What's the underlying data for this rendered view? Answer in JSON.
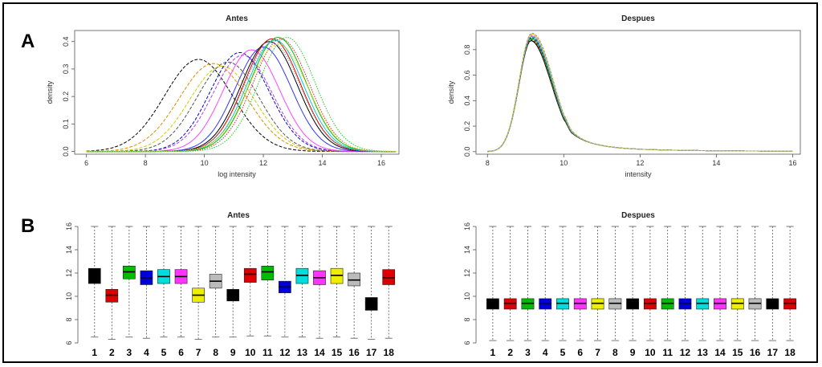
{
  "panels": {
    "a_label": "A",
    "b_label": "B"
  },
  "chart_data": [
    {
      "type": "line",
      "title": "Antes",
      "xlabel": "log intensity",
      "ylabel": "density",
      "xlim": [
        5.6,
        16.6
      ],
      "ylim": [
        -0.01,
        0.44
      ],
      "xticks": [
        "6",
        "8",
        "10",
        "12",
        "14",
        "16"
      ],
      "yticks": [
        "0.0",
        "0.1",
        "0.2",
        "0.3",
        "0.4"
      ],
      "series": [
        {
          "color": "#000000",
          "mean": 9.8,
          "sd": 1.15,
          "peak": 0.335,
          "style": "dashed"
        },
        {
          "color": "#e08a00",
          "mean": 10.3,
          "sd": 1.15,
          "peak": 0.32,
          "style": "dashed"
        },
        {
          "color": "#cccc00",
          "mean": 10.6,
          "sd": 1.1,
          "peak": 0.31,
          "style": "dashed"
        },
        {
          "color": "#555555",
          "mean": 10.8,
          "sd": 1.05,
          "peak": 0.325,
          "style": "dashed"
        },
        {
          "color": "#0000dd",
          "mean": 11.2,
          "sd": 1.0,
          "peak": 0.36,
          "style": "dashed"
        },
        {
          "color": "#aa44dd",
          "mean": 11.3,
          "sd": 1.0,
          "peak": 0.35,
          "style": "dashed"
        },
        {
          "color": "#ff44ff",
          "mean": 11.6,
          "sd": 0.95,
          "peak": 0.37,
          "style": "solid"
        },
        {
          "color": "#3333ff",
          "mean": 12.0,
          "sd": 0.95,
          "peak": 0.38,
          "style": "solid"
        },
        {
          "color": "#000000",
          "mean": 12.2,
          "sd": 0.95,
          "peak": 0.4,
          "style": "solid"
        },
        {
          "color": "#dd0000",
          "mean": 12.3,
          "sd": 0.95,
          "peak": 0.41,
          "style": "solid"
        },
        {
          "color": "#00bb00",
          "mean": 12.5,
          "sd": 0.95,
          "peak": 0.415,
          "style": "solid"
        },
        {
          "color": "#00cccc",
          "mean": 12.4,
          "sd": 0.95,
          "peak": 0.405,
          "style": "solid"
        },
        {
          "color": "#dd2222",
          "mean": 12.6,
          "sd": 0.95,
          "peak": 0.41,
          "style": "dotted"
        },
        {
          "color": "#22cc22",
          "mean": 12.8,
          "sd": 0.95,
          "peak": 0.415,
          "style": "dotted"
        },
        {
          "color": "#999999",
          "mean": 12.3,
          "sd": 0.95,
          "peak": 0.395,
          "style": "dotted"
        },
        {
          "color": "#ffcc00",
          "mean": 12.5,
          "sd": 1.0,
          "peak": 0.39,
          "style": "dotted"
        }
      ]
    },
    {
      "type": "line",
      "title": "Despues",
      "xlabel": "intensity",
      "ylabel": "density",
      "xlim": [
        7.7,
        16.2
      ],
      "ylim": [
        -0.02,
        0.95
      ],
      "xticks": [
        "8",
        "10",
        "12",
        "14",
        "16"
      ],
      "yticks": [
        "0.0",
        "0.2",
        "0.4",
        "0.6",
        "0.8"
      ],
      "peak_x": 9.15,
      "peak_y": 0.9,
      "series_colors": [
        "#000000",
        "#dd0000",
        "#00bb00",
        "#0000dd",
        "#00cccc",
        "#ff44ff",
        "#dddd00",
        "#999999"
      ]
    },
    {
      "type": "box",
      "title": "Antes",
      "ylim": [
        6,
        16
      ],
      "yticks": [
        "6",
        "8",
        "10",
        "12",
        "14",
        "16"
      ],
      "categories": [
        "1",
        "2",
        "3",
        "4",
        "5",
        "6",
        "7",
        "8",
        "9",
        "10",
        "11",
        "12",
        "13",
        "14",
        "15",
        "16",
        "17",
        "18"
      ],
      "colors": [
        "#000000",
        "#dd0000",
        "#00bb00",
        "#0000dd",
        "#00dddd",
        "#ff33ff",
        "#eeee00",
        "#bbbbbb",
        "#000000",
        "#dd0000",
        "#00bb00",
        "#0000dd",
        "#00dddd",
        "#ff33ff",
        "#eeee00",
        "#bbbbbb",
        "#000000",
        "#dd0000"
      ],
      "q1": [
        11.1,
        9.5,
        11.5,
        11.0,
        11.1,
        11.1,
        9.5,
        10.7,
        9.6,
        11.2,
        11.4,
        10.3,
        11.1,
        11.0,
        11.1,
        10.9,
        8.8,
        11.0
      ],
      "median": [
        11.7,
        10.1,
        12.1,
        11.6,
        11.7,
        11.7,
        10.1,
        11.3,
        10.1,
        11.9,
        12.1,
        10.8,
        11.8,
        11.6,
        11.8,
        11.4,
        9.4,
        11.6
      ],
      "q3": [
        12.4,
        10.6,
        12.6,
        12.2,
        12.3,
        12.3,
        10.7,
        11.9,
        10.6,
        12.4,
        12.6,
        11.3,
        12.4,
        12.2,
        12.4,
        12.0,
        9.9,
        12.3
      ],
      "whisker_low": [
        6.5,
        6.3,
        6.5,
        6.4,
        6.5,
        6.5,
        6.3,
        6.5,
        6.5,
        6.6,
        6.6,
        6.5,
        6.5,
        6.4,
        6.5,
        6.4,
        6.3,
        6.4
      ],
      "whisker_high": [
        16,
        16,
        16,
        16,
        16,
        16,
        16,
        16,
        16,
        16,
        16,
        16,
        16,
        16,
        16,
        16,
        16,
        16
      ]
    },
    {
      "type": "box",
      "title": "Despues",
      "ylim": [
        6,
        16
      ],
      "yticks": [
        "6",
        "8",
        "10",
        "12",
        "14",
        "16"
      ],
      "categories": [
        "1",
        "2",
        "3",
        "4",
        "5",
        "6",
        "7",
        "8",
        "9",
        "10",
        "11",
        "12",
        "13",
        "14",
        "15",
        "16",
        "17",
        "18"
      ],
      "colors": [
        "#000000",
        "#dd0000",
        "#00bb00",
        "#0000dd",
        "#00dddd",
        "#ff33ff",
        "#eeee00",
        "#bbbbbb",
        "#000000",
        "#dd0000",
        "#00bb00",
        "#0000dd",
        "#00dddd",
        "#ff33ff",
        "#eeee00",
        "#bbbbbb",
        "#000000",
        "#dd0000"
      ],
      "q1": [
        8.9,
        8.9,
        8.9,
        8.9,
        8.9,
        8.9,
        8.9,
        8.9,
        8.9,
        8.9,
        8.9,
        8.9,
        8.9,
        8.9,
        8.9,
        8.9,
        8.9,
        8.9
      ],
      "median": [
        9.4,
        9.4,
        9.4,
        9.4,
        9.4,
        9.4,
        9.4,
        9.4,
        9.4,
        9.4,
        9.4,
        9.4,
        9.4,
        9.4,
        9.4,
        9.4,
        9.4,
        9.4
      ],
      "q3": [
        9.8,
        9.8,
        9.8,
        9.8,
        9.8,
        9.8,
        9.8,
        9.8,
        9.8,
        9.8,
        9.8,
        9.8,
        9.8,
        9.8,
        9.8,
        9.8,
        9.8,
        9.8
      ],
      "whisker_low": [
        6.2,
        6.2,
        6.2,
        6.2,
        6.2,
        6.2,
        6.2,
        6.2,
        6.2,
        6.2,
        6.2,
        6.2,
        6.2,
        6.2,
        6.2,
        6.2,
        6.2,
        6.2
      ],
      "whisker_high": [
        16,
        16,
        16,
        16,
        16,
        16,
        16,
        16,
        16,
        16,
        16,
        16,
        16,
        16,
        16,
        16,
        16,
        16
      ]
    }
  ]
}
